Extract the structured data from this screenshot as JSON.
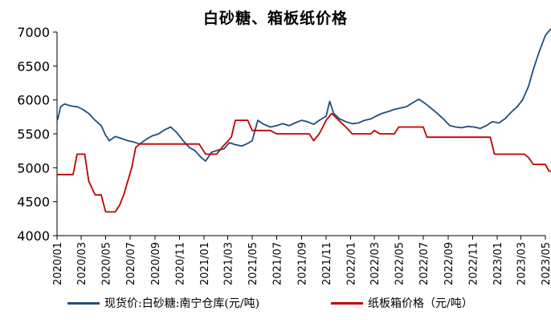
{
  "chart_data": {
    "type": "line",
    "title": "白砂糖、箱板纸价格",
    "xlabel": "",
    "ylabel": "",
    "ylim": [
      4000,
      7000
    ],
    "yticks": [
      4000,
      4500,
      5000,
      5500,
      6000,
      6500,
      7000
    ],
    "xlim": [
      "2020-01",
      "2023-05"
    ],
    "xticks": [
      "2020/01",
      "2020/03",
      "2020/05",
      "2020/07",
      "2020/09",
      "2020/11",
      "2021/01",
      "2021/03",
      "2021/05",
      "2021/07",
      "2021/09",
      "2021/11",
      "2022/01",
      "2022/03",
      "2022/05",
      "2022/07",
      "2022/09",
      "2022/11",
      "2023/01",
      "2023/03",
      "2023/05"
    ],
    "grid": false,
    "legend_position": "bottom",
    "series": [
      {
        "name": "现货价:白砂糖:南宁仓库(元/吨)",
        "color": "#1f4e79",
        "points": [
          [
            "2020-01-02",
            5700
          ],
          [
            "2020-01-10",
            5900
          ],
          [
            "2020-01-20",
            5940
          ],
          [
            "2020-02-05",
            5910
          ],
          [
            "2020-02-20",
            5900
          ],
          [
            "2020-03-05",
            5860
          ],
          [
            "2020-03-20",
            5800
          ],
          [
            "2020-04-05",
            5700
          ],
          [
            "2020-04-20",
            5620
          ],
          [
            "2020-05-01",
            5480
          ],
          [
            "2020-05-10",
            5400
          ],
          [
            "2020-05-25",
            5460
          ],
          [
            "2020-06-10",
            5430
          ],
          [
            "2020-06-25",
            5400
          ],
          [
            "2020-07-10",
            5380
          ],
          [
            "2020-07-25",
            5350
          ],
          [
            "2020-08-10",
            5420
          ],
          [
            "2020-08-25",
            5470
          ],
          [
            "2020-09-10",
            5500
          ],
          [
            "2020-09-25",
            5560
          ],
          [
            "2020-10-10",
            5600
          ],
          [
            "2020-10-25",
            5520
          ],
          [
            "2020-11-10",
            5400
          ],
          [
            "2020-11-25",
            5300
          ],
          [
            "2020-12-10",
            5250
          ],
          [
            "2020-12-25",
            5150
          ],
          [
            "2021-01-05",
            5100
          ],
          [
            "2021-01-20",
            5230
          ],
          [
            "2021-02-05",
            5260
          ],
          [
            "2021-02-20",
            5280
          ],
          [
            "2021-03-05",
            5370
          ],
          [
            "2021-03-20",
            5340
          ],
          [
            "2021-04-05",
            5320
          ],
          [
            "2021-04-20",
            5360
          ],
          [
            "2021-05-01",
            5400
          ],
          [
            "2021-05-15",
            5700
          ],
          [
            "2021-05-30",
            5640
          ],
          [
            "2021-06-15",
            5600
          ],
          [
            "2021-07-01",
            5620
          ],
          [
            "2021-07-15",
            5650
          ],
          [
            "2021-08-01",
            5620
          ],
          [
            "2021-08-15",
            5660
          ],
          [
            "2021-09-01",
            5700
          ],
          [
            "2021-09-15",
            5680
          ],
          [
            "2021-10-01",
            5640
          ],
          [
            "2021-10-15",
            5700
          ],
          [
            "2021-11-01",
            5760
          ],
          [
            "2021-11-10",
            5980
          ],
          [
            "2021-11-20",
            5800
          ],
          [
            "2021-12-05",
            5720
          ],
          [
            "2021-12-20",
            5680
          ],
          [
            "2022-01-05",
            5650
          ],
          [
            "2022-01-20",
            5660
          ],
          [
            "2022-02-05",
            5700
          ],
          [
            "2022-02-20",
            5720
          ],
          [
            "2022-03-05",
            5760
          ],
          [
            "2022-03-20",
            5800
          ],
          [
            "2022-04-05",
            5830
          ],
          [
            "2022-04-20",
            5860
          ],
          [
            "2022-05-05",
            5880
          ],
          [
            "2022-05-20",
            5900
          ],
          [
            "2022-06-05",
            5960
          ],
          [
            "2022-06-20",
            6010
          ],
          [
            "2022-07-05",
            5950
          ],
          [
            "2022-07-20",
            5880
          ],
          [
            "2022-08-05",
            5800
          ],
          [
            "2022-08-20",
            5720
          ],
          [
            "2022-09-05",
            5620
          ],
          [
            "2022-09-20",
            5600
          ],
          [
            "2022-10-05",
            5590
          ],
          [
            "2022-10-20",
            5610
          ],
          [
            "2022-11-05",
            5600
          ],
          [
            "2022-11-20",
            5580
          ],
          [
            "2022-12-05",
            5620
          ],
          [
            "2022-12-20",
            5680
          ],
          [
            "2023-01-05",
            5660
          ],
          [
            "2023-01-20",
            5720
          ],
          [
            "2023-02-05",
            5820
          ],
          [
            "2023-02-20",
            5900
          ],
          [
            "2023-03-05",
            6000
          ],
          [
            "2023-03-20",
            6200
          ],
          [
            "2023-04-01",
            6450
          ],
          [
            "2023-04-15",
            6700
          ],
          [
            "2023-05-01",
            6950
          ],
          [
            "2023-05-15",
            7050
          ]
        ]
      },
      {
        "name": "纸板箱价格（元/吨）",
        "color": "#c00000",
        "points": [
          [
            "2020-01-02",
            4900
          ],
          [
            "2020-02-10",
            4900
          ],
          [
            "2020-02-20",
            5200
          ],
          [
            "2020-03-10",
            5200
          ],
          [
            "2020-03-20",
            4800
          ],
          [
            "2020-04-05",
            4600
          ],
          [
            "2020-04-20",
            4600
          ],
          [
            "2020-05-01",
            4350
          ],
          [
            "2020-05-25",
            4350
          ],
          [
            "2020-06-05",
            4450
          ],
          [
            "2020-06-15",
            4600
          ],
          [
            "2020-06-25",
            4800
          ],
          [
            "2020-07-05",
            5000
          ],
          [
            "2020-07-15",
            5300
          ],
          [
            "2020-07-25",
            5350
          ],
          [
            "2020-09-10",
            5350
          ],
          [
            "2020-12-20",
            5350
          ],
          [
            "2021-01-05",
            5200
          ],
          [
            "2021-02-01",
            5200
          ],
          [
            "2021-02-15",
            5300
          ],
          [
            "2021-03-10",
            5450
          ],
          [
            "2021-03-20",
            5700
          ],
          [
            "2021-04-20",
            5700
          ],
          [
            "2021-05-01",
            5550
          ],
          [
            "2021-06-15",
            5550
          ],
          [
            "2021-07-01",
            5500
          ],
          [
            "2021-09-20",
            5500
          ],
          [
            "2021-10-01",
            5400
          ],
          [
            "2021-10-15",
            5500
          ],
          [
            "2021-11-01",
            5700
          ],
          [
            "2021-11-15",
            5800
          ],
          [
            "2021-12-20",
            5600
          ],
          [
            "2022-01-05",
            5500
          ],
          [
            "2022-02-20",
            5500
          ],
          [
            "2022-03-01",
            5550
          ],
          [
            "2022-03-15",
            5500
          ],
          [
            "2022-04-20",
            5500
          ],
          [
            "2022-05-01",
            5600
          ],
          [
            "2022-07-01",
            5600
          ],
          [
            "2022-07-10",
            5450
          ],
          [
            "2022-12-15",
            5450
          ],
          [
            "2022-12-25",
            5200
          ],
          [
            "2023-03-10",
            5200
          ],
          [
            "2023-03-20",
            5150
          ],
          [
            "2023-04-01",
            5050
          ],
          [
            "2023-05-01",
            5050
          ],
          [
            "2023-05-10",
            4950
          ],
          [
            "2023-05-18",
            4950
          ]
        ]
      }
    ]
  }
}
